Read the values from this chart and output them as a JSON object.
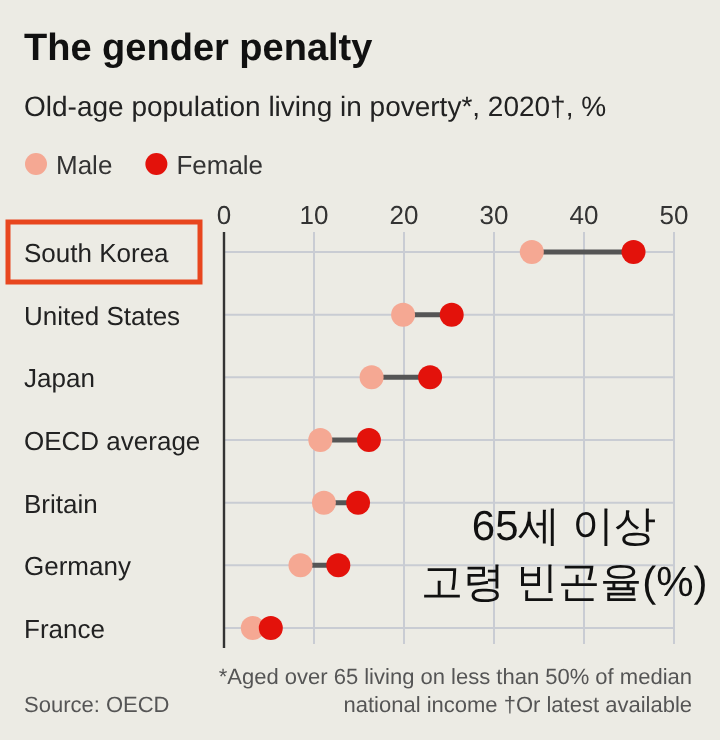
{
  "chart_data": {
    "type": "scatter",
    "title": "The gender penalty",
    "subtitle": "Old-age population living in poverty*, 2020†, %",
    "categories": [
      "South Korea",
      "United States",
      "Japan",
      "OECD average",
      "Britain",
      "Germany",
      "France"
    ],
    "orientation": "horizontal",
    "xlim": [
      0,
      50
    ],
    "xticks": [
      0,
      10,
      20,
      30,
      40,
      50
    ],
    "grid": true,
    "legend": "top left",
    "series": [
      {
        "name": "Male",
        "color": "#f5a893",
        "values": [
          34.2,
          19.9,
          16.4,
          10.7,
          11.1,
          8.5,
          3.2
        ]
      },
      {
        "name": "Female",
        "color": "#e3120b",
        "values": [
          45.5,
          25.3,
          22.9,
          16.1,
          14.9,
          12.7,
          5.2
        ]
      }
    ],
    "annotations": [
      "65세 이상\n고령 빈곤율(%)",
      "Source: OECD",
      "*Aged over 65 living on less than 50% of median\nnational income    †Or latest available"
    ]
  }
}
